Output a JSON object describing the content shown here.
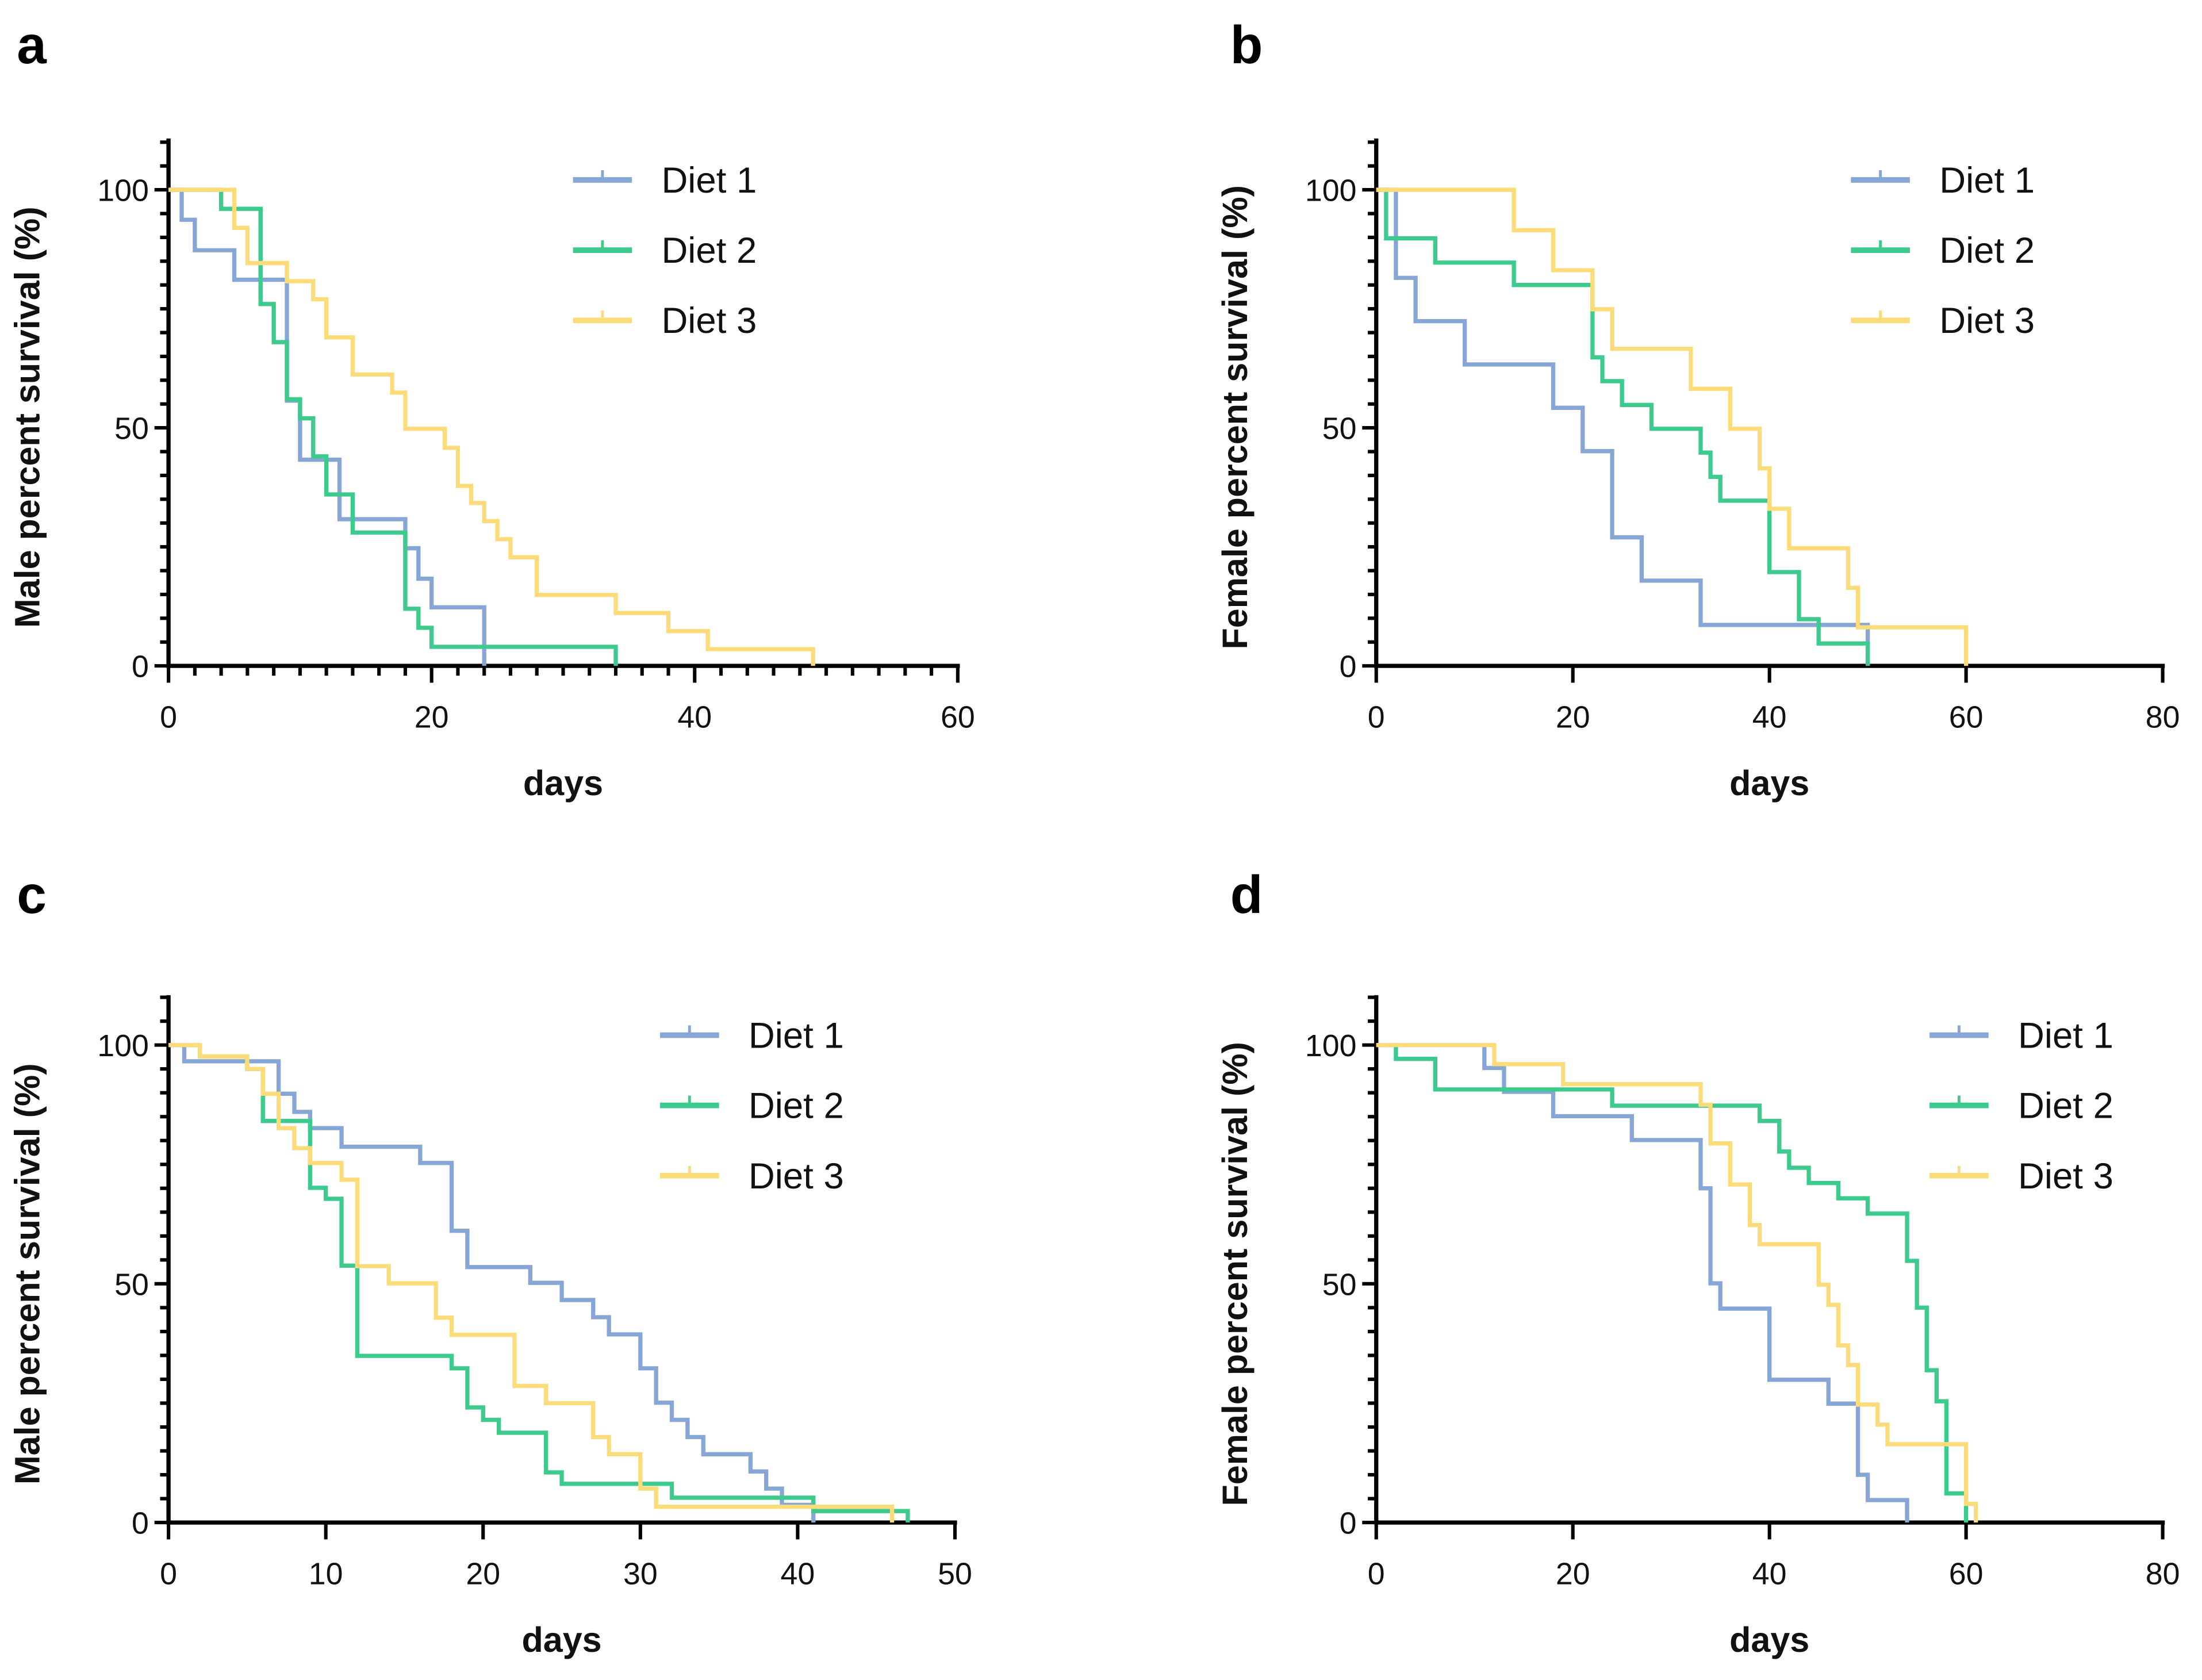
{
  "colors": {
    "Diet 1": "#86a6d6",
    "Diet 2": "#3ccb8c",
    "Diet 3": "#fcdc7a"
  },
  "chart_data": [
    {
      "panel": "a",
      "type": "line",
      "subtype": "kaplan-meier step",
      "xlabel": "days",
      "ylabel": "Male percent survival (%)",
      "xlim": [
        0,
        60
      ],
      "ylim": [
        0,
        110
      ],
      "xticks": [
        0,
        20,
        40,
        60
      ],
      "yticks": [
        0,
        50,
        100
      ],
      "x_minor_step": 2,
      "legend": "top-right",
      "series": [
        {
          "name": "Diet 1",
          "steps": [
            [
              0,
              100
            ],
            [
              1,
              93.7
            ],
            [
              2,
              87.3
            ],
            [
              5,
              81.1
            ],
            [
              9,
              55.7
            ],
            [
              10,
              43.3
            ],
            [
              13,
              30.8
            ],
            [
              18,
              24.7
            ],
            [
              19,
              18.3
            ],
            [
              20,
              12.3
            ],
            [
              24,
              0
            ]
          ]
        },
        {
          "name": "Diet 2",
          "steps": [
            [
              0,
              100
            ],
            [
              4,
              96
            ],
            [
              7,
              76
            ],
            [
              8,
              68
            ],
            [
              9,
              56
            ],
            [
              10,
              52
            ],
            [
              11,
              44
            ],
            [
              12,
              36
            ],
            [
              14,
              28
            ],
            [
              18,
              12
            ],
            [
              19,
              8
            ],
            [
              20,
              4
            ],
            [
              34,
              0
            ]
          ]
        },
        {
          "name": "Diet 3",
          "steps": [
            [
              0,
              100
            ],
            [
              5,
              92
            ],
            [
              6,
              84.6
            ],
            [
              9,
              80.8
            ],
            [
              11,
              77
            ],
            [
              12,
              69
            ],
            [
              14,
              61.2
            ],
            [
              17,
              57.4
            ],
            [
              18,
              49.8
            ],
            [
              21,
              45.8
            ],
            [
              22,
              37.8
            ],
            [
              23,
              34.2
            ],
            [
              24,
              30.4
            ],
            [
              25,
              26.6
            ],
            [
              26,
              22.8
            ],
            [
              28,
              14.9
            ],
            [
              34,
              11.1
            ],
            [
              38,
              7.3
            ],
            [
              41,
              3.5
            ],
            [
              49,
              0
            ]
          ]
        }
      ]
    },
    {
      "panel": "b",
      "type": "line",
      "subtype": "kaplan-meier step",
      "xlabel": "days",
      "ylabel": "Female percent survival (%)",
      "xlim": [
        0,
        80
      ],
      "ylim": [
        0,
        110
      ],
      "xticks": [
        0,
        20,
        40,
        60,
        80
      ],
      "yticks": [
        0,
        50,
        100
      ],
      "x_minor_step": 0,
      "legend": "top-right",
      "series": [
        {
          "name": "Diet 1",
          "steps": [
            [
              0,
              100
            ],
            [
              2,
              81.5
            ],
            [
              4,
              72.4
            ],
            [
              9,
              63.3
            ],
            [
              18,
              54.2
            ],
            [
              21,
              45.1
            ],
            [
              24,
              27
            ],
            [
              27,
              17.9
            ],
            [
              33,
              8.6
            ],
            [
              50,
              0
            ]
          ]
        },
        {
          "name": "Diet 2",
          "steps": [
            [
              0,
              100
            ],
            [
              1,
              89.8
            ],
            [
              6,
              84.7
            ],
            [
              14,
              80
            ],
            [
              22,
              64.8
            ],
            [
              23,
              59.8
            ],
            [
              25,
              54.8
            ],
            [
              28,
              49.8
            ],
            [
              33,
              44.8
            ],
            [
              34,
              39.7
            ],
            [
              35,
              34.7
            ],
            [
              40,
              19.7
            ],
            [
              43,
              9.8
            ],
            [
              45,
              4.7
            ],
            [
              50,
              0
            ]
          ]
        },
        {
          "name": "Diet 3",
          "steps": [
            [
              0,
              100
            ],
            [
              14,
              91.5
            ],
            [
              18,
              83.1
            ],
            [
              22,
              74.9
            ],
            [
              24,
              66.6
            ],
            [
              32,
              58.2
            ],
            [
              36,
              49.8
            ],
            [
              39,
              41.5
            ],
            [
              40,
              33
            ],
            [
              42,
              24.7
            ],
            [
              48,
              16.4
            ],
            [
              49,
              8.1
            ],
            [
              60,
              0
            ]
          ]
        }
      ]
    },
    {
      "panel": "c",
      "type": "line",
      "subtype": "kaplan-meier step",
      "xlabel": "days",
      "ylabel": "Male percent survival (%)",
      "xlim": [
        0,
        50
      ],
      "ylim": [
        0,
        110
      ],
      "xticks": [
        0,
        10,
        20,
        30,
        40,
        50
      ],
      "yticks": [
        0,
        50,
        100
      ],
      "x_minor_step": 0,
      "legend": "top-right",
      "series": [
        {
          "name": "Diet 1",
          "steps": [
            [
              0,
              100
            ],
            [
              1,
              96.6
            ],
            [
              7,
              89.8
            ],
            [
              8,
              86
            ],
            [
              9,
              82.6
            ],
            [
              11,
              78.7
            ],
            [
              16,
              75.3
            ],
            [
              18,
              61.1
            ],
            [
              19,
              53.5
            ],
            [
              23,
              50.2
            ],
            [
              25,
              46.6
            ],
            [
              27,
              43
            ],
            [
              28,
              39.4
            ],
            [
              30,
              32.3
            ],
            [
              31,
              25.1
            ],
            [
              32,
              21.5
            ],
            [
              33,
              17.9
            ],
            [
              34,
              14.3
            ],
            [
              37,
              10.7
            ],
            [
              38,
              7.1
            ],
            [
              39,
              3.7
            ],
            [
              41,
              0
            ]
          ]
        },
        {
          "name": "Diet 2",
          "steps": [
            [
              0,
              100
            ],
            [
              2,
              97.6
            ],
            [
              5,
              95
            ],
            [
              6,
              84.1
            ],
            [
              9,
              70.1
            ],
            [
              10,
              67.8
            ],
            [
              11,
              53.8
            ],
            [
              12,
              34.9
            ],
            [
              18,
              32.3
            ],
            [
              19,
              24.1
            ],
            [
              20,
              21.5
            ],
            [
              21,
              18.8
            ],
            [
              24,
              10.5
            ],
            [
              25,
              8.1
            ],
            [
              32,
              5.2
            ],
            [
              41,
              2.4
            ],
            [
              47,
              0
            ]
          ]
        },
        {
          "name": "Diet 3",
          "steps": [
            [
              0,
              100
            ],
            [
              2,
              97.6
            ],
            [
              5,
              95
            ],
            [
              6,
              89.8
            ],
            [
              7,
              82.6
            ],
            [
              8,
              78.4
            ],
            [
              9,
              75.3
            ],
            [
              11,
              71.8
            ],
            [
              12,
              53.7
            ],
            [
              14,
              50.1
            ],
            [
              17,
              42.9
            ],
            [
              18,
              39.3
            ],
            [
              22,
              28.6
            ],
            [
              24,
              25
            ],
            [
              27,
              17.9
            ],
            [
              28,
              14.3
            ],
            [
              30,
              7.1
            ],
            [
              31,
              3.3
            ],
            [
              46,
              0
            ]
          ]
        }
      ]
    },
    {
      "panel": "d",
      "type": "line",
      "subtype": "kaplan-meier step",
      "xlabel": "days",
      "ylabel": "Female percent survival (%)",
      "xlim": [
        0,
        80
      ],
      "ylim": [
        0,
        110
      ],
      "xticks": [
        0,
        20,
        40,
        60,
        80
      ],
      "yticks": [
        0,
        50,
        100
      ],
      "x_minor_step": 0,
      "legend": "top-right",
      "series": [
        {
          "name": "Diet 1",
          "steps": [
            [
              0,
              100
            ],
            [
              11,
              95.2
            ],
            [
              13,
              90.2
            ],
            [
              18,
              85.1
            ],
            [
              26,
              80.1
            ],
            [
              33,
              70
            ],
            [
              34,
              50.1
            ],
            [
              35,
              44.8
            ],
            [
              40,
              29.9
            ],
            [
              46,
              24.9
            ],
            [
              49,
              10
            ],
            [
              50,
              4.7
            ],
            [
              54,
              0
            ]
          ]
        },
        {
          "name": "Diet 2",
          "steps": [
            [
              0,
              100
            ],
            [
              2,
              97.1
            ],
            [
              6,
              90.7
            ],
            [
              24,
              87.3
            ],
            [
              39,
              84.1
            ],
            [
              41,
              77.7
            ],
            [
              42,
              74.3
            ],
            [
              44,
              71.1
            ],
            [
              47,
              67.9
            ],
            [
              50,
              64.7
            ],
            [
              54,
              54.8
            ],
            [
              55,
              45
            ],
            [
              56,
              31.9
            ],
            [
              57,
              25.4
            ],
            [
              58,
              6.1
            ],
            [
              60,
              0
            ]
          ]
        },
        {
          "name": "Diet 3",
          "steps": [
            [
              0,
              100
            ],
            [
              12,
              96
            ],
            [
              19,
              91.8
            ],
            [
              33,
              87.5
            ],
            [
              34,
              79.4
            ],
            [
              36,
              70.8
            ],
            [
              38,
              62.3
            ],
            [
              39,
              58.3
            ],
            [
              45,
              49.8
            ],
            [
              46,
              45.6
            ],
            [
              47,
              37.1
            ],
            [
              48,
              33
            ],
            [
              49,
              24.7
            ],
            [
              51,
              20.5
            ],
            [
              52,
              16.4
            ],
            [
              60,
              3.9
            ],
            [
              61,
              0
            ]
          ]
        }
      ]
    }
  ]
}
